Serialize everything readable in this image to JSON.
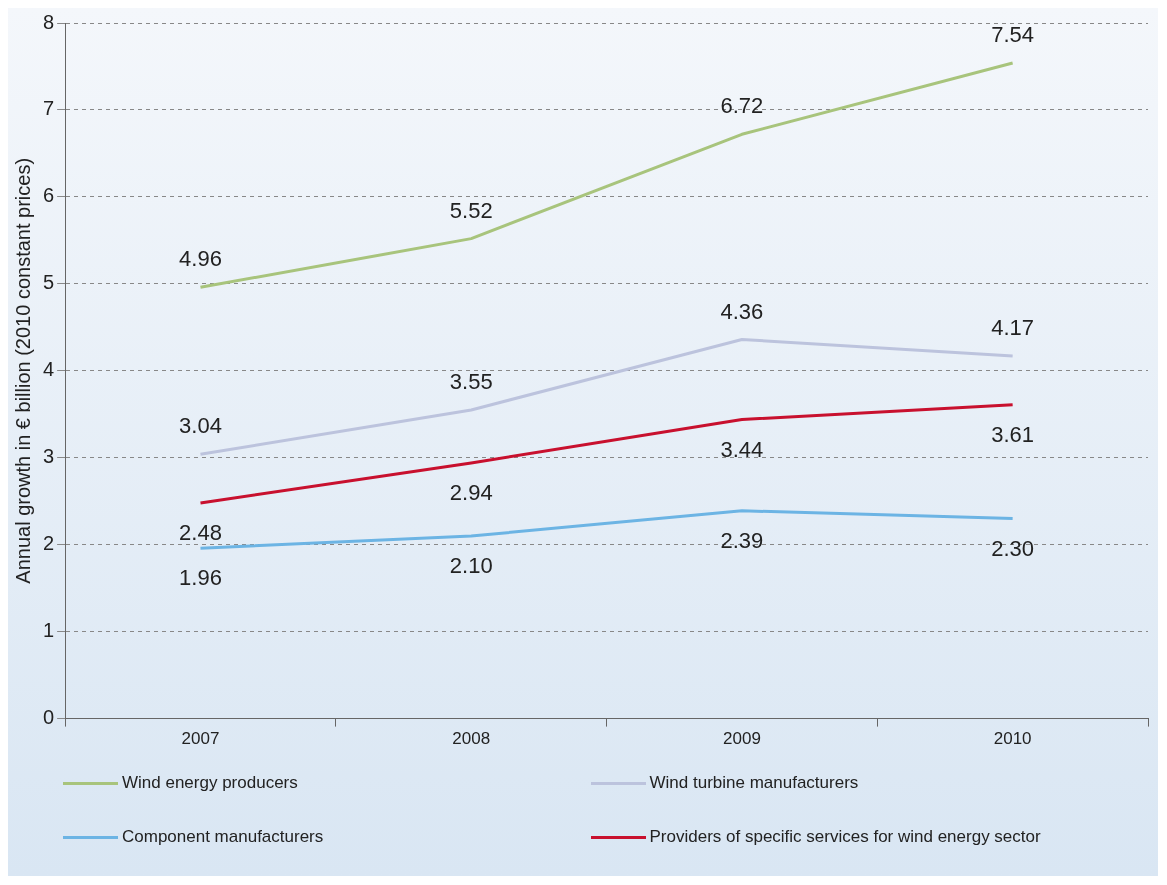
{
  "chart_data": {
    "type": "line",
    "ylabel": "Annual growth in € billion (2010 constant prices)",
    "categories": [
      "2007",
      "2008",
      "2009",
      "2010"
    ],
    "series": [
      {
        "name": "Wind energy producers",
        "color": "#a8c47c",
        "values": [
          4.96,
          5.52,
          6.72,
          7.54
        ],
        "value_labels": [
          "4.96",
          "5.52",
          "6.72",
          "7.54"
        ]
      },
      {
        "name": "Wind turbine manufacturers",
        "color": "#bcc3dd",
        "values": [
          3.04,
          3.55,
          4.36,
          4.17
        ],
        "value_labels": [
          "3.04",
          "3.55",
          "4.36",
          "4.17"
        ]
      },
      {
        "name": "Component manufacturers",
        "color": "#6cb4e4",
        "values": [
          1.96,
          2.1,
          2.39,
          2.3
        ],
        "value_labels": [
          "1.96",
          "2.10",
          "2.39",
          "2.30"
        ]
      },
      {
        "name": "Providers of specific services for wind energy sector",
        "color": "#c8102e",
        "values": [
          2.48,
          2.94,
          3.44,
          3.61
        ],
        "value_labels": [
          "2.48",
          "2.94",
          "3.44",
          "3.61"
        ]
      }
    ],
    "ylim": [
      0,
      8
    ],
    "yticks": [
      0,
      1,
      2,
      3,
      4,
      5,
      6,
      7,
      8
    ],
    "grid": "y",
    "legend": "bottom",
    "marker": "none",
    "line_style": "solid"
  }
}
